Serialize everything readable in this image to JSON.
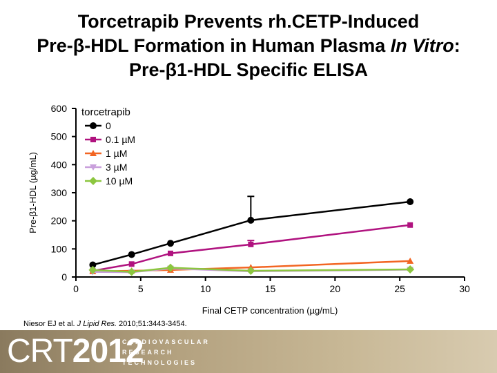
{
  "slide": {
    "title_line1": "Torcetrapib Prevents rh.CETP-Induced",
    "title_line2_prefix": "Pre-β-HDL Formation in Human Plasma ",
    "title_line2_italic": "In Vitro",
    "title_line2_suffix": ":",
    "title_line3": "Pre-β1-HDL Specific ELISA",
    "citation_authors": "Niesor EJ et al. ",
    "citation_journal": "J Lipid Res.",
    "citation_rest": " 2010;51:3443-3454."
  },
  "footer": {
    "logo_text": "CRT",
    "logo_year": "2012",
    "tagline_1": "CARDIOVASCULAR",
    "tagline_2": "RESEARCH",
    "tagline_3": "TECHNOLOGIES"
  },
  "chart_data": {
    "type": "line",
    "title": "",
    "xlabel": "Final CETP concentration (µg/mL)",
    "ylabel": "Pre-β1-HDL (µg/mL)",
    "xlim": [
      0,
      30
    ],
    "ylim": [
      0,
      600
    ],
    "xticks": [
      0,
      5,
      10,
      15,
      20,
      25,
      30
    ],
    "yticks": [
      0,
      100,
      200,
      300,
      400,
      500,
      600
    ],
    "grid": false,
    "legend_title": "torcetrapib",
    "legend_position": "top-left",
    "series": [
      {
        "name": "0",
        "color": "#000000",
        "marker": "circle",
        "x": [
          1.3,
          4.3,
          7.3,
          13.5,
          25.8
        ],
        "y": [
          43,
          80,
          120,
          202,
          268
        ],
        "err": [
          0,
          0,
          0,
          85,
          0
        ]
      },
      {
        "name": "0.1 µM",
        "color": "#b0127f",
        "marker": "square",
        "x": [
          1.3,
          4.3,
          7.3,
          13.5,
          25.8
        ],
        "y": [
          22,
          46,
          84,
          116,
          185
        ],
        "err": [
          0,
          0,
          0,
          14,
          0
        ]
      },
      {
        "name": "1 µM",
        "color": "#f26522",
        "marker": "triangle-up",
        "x": [
          1.3,
          4.3,
          7.3,
          13.5,
          25.8
        ],
        "y": [
          20,
          22,
          25,
          34,
          57
        ],
        "err": [
          0,
          0,
          0,
          0,
          0
        ]
      },
      {
        "name": "3 µM",
        "color": "#c9a0dc",
        "marker": "triangle-down",
        "x": [
          1.3,
          4.3,
          7.3,
          13.5,
          25.8
        ],
        "y": [
          18,
          17,
          30,
          20,
          26
        ],
        "err": [
          0,
          0,
          0,
          0,
          0
        ]
      },
      {
        "name": "10 µM",
        "color": "#8cc63f",
        "marker": "diamond",
        "x": [
          1.3,
          4.3,
          7.3,
          13.5,
          25.8
        ],
        "y": [
          25,
          18,
          33,
          22,
          27
        ],
        "err": [
          0,
          0,
          0,
          0,
          0
        ]
      }
    ]
  }
}
